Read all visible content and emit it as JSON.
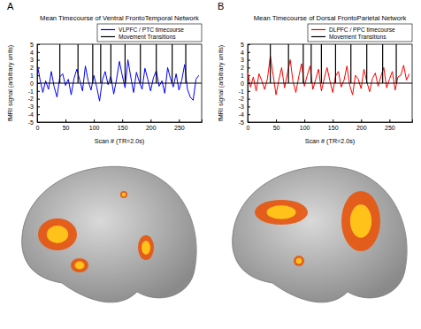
{
  "chart_data": [
    {
      "type": "line",
      "panel_label": "A",
      "title": "Mean Timecourse of Ventral FrontoTemporal Network",
      "x_label": "Scan # (TR=2.0s)",
      "y_label": "fMRI signal (arbitrary units)",
      "xlim": [
        0,
        290
      ],
      "xticks": [
        0,
        50,
        100,
        150,
        200,
        250
      ],
      "ylim": [
        -5,
        5
      ],
      "yticks": [
        -5,
        -4,
        -3,
        -2,
        -1,
        0,
        1,
        2,
        3,
        4,
        5
      ],
      "legend": "upper right",
      "series": [
        {
          "name": "VLPFC / PTC timecourse",
          "type": "line",
          "color": "#0000ff",
          "x": [
            0,
            5,
            10,
            15,
            20,
            25,
            30,
            35,
            40,
            45,
            50,
            55,
            60,
            65,
            70,
            75,
            80,
            85,
            90,
            95,
            100,
            105,
            110,
            115,
            120,
            125,
            130,
            135,
            140,
            145,
            150,
            155,
            160,
            165,
            170,
            175,
            180,
            185,
            190,
            195,
            200,
            205,
            210,
            215,
            220,
            225,
            230,
            235,
            240,
            245,
            250,
            255,
            260,
            265,
            270,
            275,
            280,
            285
          ],
          "values": [
            2.5,
            0.5,
            -1.2,
            0.3,
            -0.8,
            1.5,
            -0.5,
            -1.8,
            0.8,
            1.2,
            -0.3,
            0.5,
            -1.5,
            0.6,
            1.8,
            0.4,
            -1.0,
            2.2,
            0.3,
            -0.9,
            1.0,
            -0.5,
            -2.3,
            0.4,
            1.5,
            -0.2,
            0.9,
            -1.4,
            0.5,
            2.8,
            1.0,
            -0.6,
            3.0,
            0.8,
            -1.2,
            1.4,
            0.2,
            -0.8,
            1.9,
            0.5,
            -1.0,
            0.7,
            1.6,
            -0.4,
            0.3,
            -1.3,
            2.0,
            0.6,
            -0.5,
            1.2,
            -0.9,
            0.4,
            2.4,
            -0.8,
            -1.8,
            -2.2,
            0.5,
            1.0
          ]
        },
        {
          "name": "Movement Transitions",
          "type": "stem",
          "color": "#000000",
          "x": [
            40,
            72,
            98,
            112,
            130,
            155,
            182,
            210,
            238,
            262
          ],
          "values": [
            5,
            5,
            5,
            5,
            5,
            5,
            5,
            5,
            5,
            5
          ]
        }
      ]
    },
    {
      "type": "line",
      "panel_label": "B",
      "title": "Mean Timecourse of Dorsal FrontoParietal Network",
      "x_label": "Scan # (TR=2.0s)",
      "y_label": "fMRI signal (arbitrary units)",
      "xlim": [
        0,
        290
      ],
      "xticks": [
        0,
        50,
        100,
        150,
        200,
        250
      ],
      "ylim": [
        -5,
        5
      ],
      "yticks": [
        -5,
        -4,
        -3,
        -2,
        -1,
        0,
        1,
        2,
        3,
        4,
        5
      ],
      "legend": "upper right",
      "series": [
        {
          "name": "DLPFC / PPC timecourse",
          "type": "line",
          "color": "#ff0000",
          "x": [
            0,
            5,
            10,
            15,
            20,
            25,
            30,
            35,
            40,
            45,
            50,
            55,
            60,
            65,
            70,
            75,
            80,
            85,
            90,
            95,
            100,
            105,
            110,
            115,
            120,
            125,
            130,
            135,
            140,
            145,
            150,
            155,
            160,
            165,
            170,
            175,
            180,
            185,
            190,
            195,
            200,
            205,
            210,
            215,
            220,
            225,
            230,
            235,
            240,
            245,
            250,
            255,
            260,
            265,
            270,
            275,
            280,
            285
          ],
          "values": [
            1.5,
            -0.5,
            0.8,
            -1.0,
            1.2,
            0.3,
            -0.8,
            0.6,
            3.5,
            1.0,
            -1.5,
            0.4,
            2.0,
            -0.6,
            1.2,
            3.0,
            0.2,
            -1.2,
            0.8,
            2.5,
            -0.4,
            1.0,
            2.2,
            -0.8,
            0.5,
            1.8,
            -1.0,
            0.6,
            2.0,
            0.3,
            -1.2,
            0.9,
            1.5,
            -0.5,
            0.4,
            2.2,
            -0.3,
            -1.5,
            1.0,
            0.5,
            -0.7,
            1.8,
            0.2,
            -1.1,
            0.6,
            1.3,
            -0.4,
            0.9,
            2.0,
            -0.6,
            0.5,
            1.5,
            -0.9,
            0.8,
            1.0,
            2.3,
            0.4,
            1.2
          ]
        },
        {
          "name": "Movement Transitions",
          "type": "stem",
          "color": "#000000",
          "x": [
            40,
            72,
            98,
            112,
            130,
            155,
            182,
            210,
            238,
            262
          ],
          "values": [
            5,
            5,
            5,
            5,
            5,
            5,
            5,
            5,
            5,
            5
          ]
        }
      ]
    }
  ]
}
